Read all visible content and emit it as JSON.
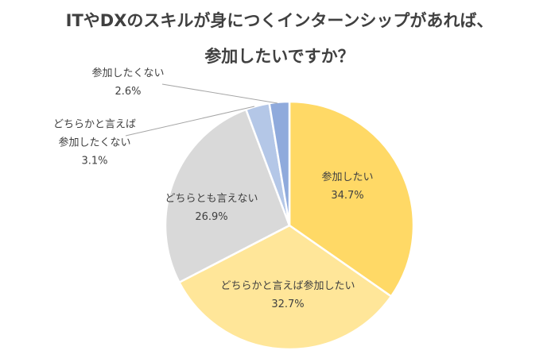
{
  "chart_data": {
    "type": "pie",
    "title_lines": [
      "ITやDXのスキルが身につくインターンシップがあれば、",
      "参加したいですか？"
    ],
    "slices": [
      {
        "label_lines": [
          "参加したい"
        ],
        "value": 34.7,
        "value_label": "34.7%",
        "color": "#FFD966"
      },
      {
        "label_lines": [
          "どちらかと言えば参加したい"
        ],
        "value": 32.7,
        "value_label": "32.7%",
        "color": "#FFE699"
      },
      {
        "label_lines": [
          "どちらとも言えない"
        ],
        "value": 26.9,
        "value_label": "26.9%",
        "color": "#D9D9D9"
      },
      {
        "label_lines": [
          "どちらかと言えば",
          "参加したくない"
        ],
        "value": 3.1,
        "value_label": "3.1%",
        "color": "#B4C7E7"
      },
      {
        "label_lines": [
          "参加したくない"
        ],
        "value": 2.6,
        "value_label": "2.6%",
        "color": "#8FAADC"
      }
    ]
  }
}
